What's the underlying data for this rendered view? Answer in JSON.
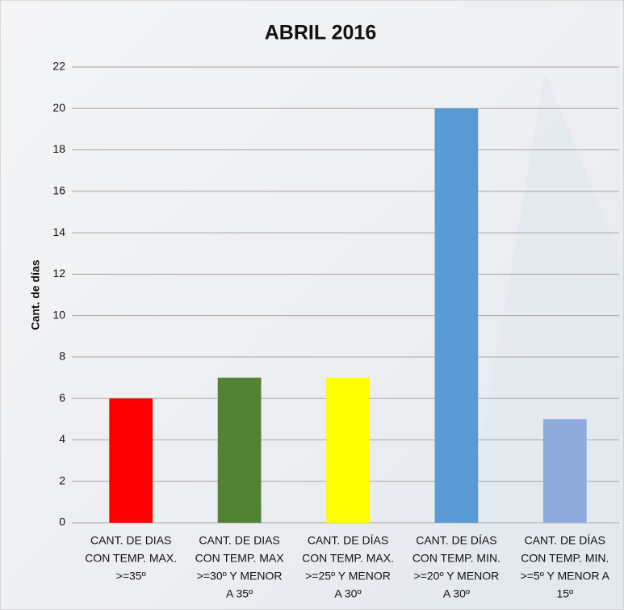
{
  "chart_data": {
    "type": "bar",
    "title": "ABRIL 2016",
    "y_label": "Cant. de días",
    "categories": [
      [
        "CANT. DE DIAS",
        "CON TEMP. MAX.",
        ">=35º"
      ],
      [
        "CANT. DE DIAS",
        "CON TEMP. MAX",
        ">=30º Y MENOR",
        "A 35º"
      ],
      [
        "CANT. DE DÍAS",
        "CON TEMP. MAX.",
        ">=25º Y MENOR",
        "A 30º"
      ],
      [
        "CANT. DE DÍAS",
        "CON TEMP. MIN.",
        ">=20º Y MENOR",
        "A 30º"
      ],
      [
        "CANT. DE DÍAS",
        "CON TEMP. MIN.",
        ">=5º Y MENOR A",
        "15º"
      ]
    ],
    "values": [
      6,
      7,
      7,
      20,
      5
    ],
    "colors": [
      "#ff0000",
      "#548235",
      "#ffff00",
      "#5b9bd5",
      "#8faadc"
    ],
    "ylim": [
      0,
      22
    ],
    "yticks": [
      0,
      2,
      4,
      6,
      8,
      10,
      12,
      14,
      16,
      18,
      20,
      22
    ],
    "grid": true
  }
}
